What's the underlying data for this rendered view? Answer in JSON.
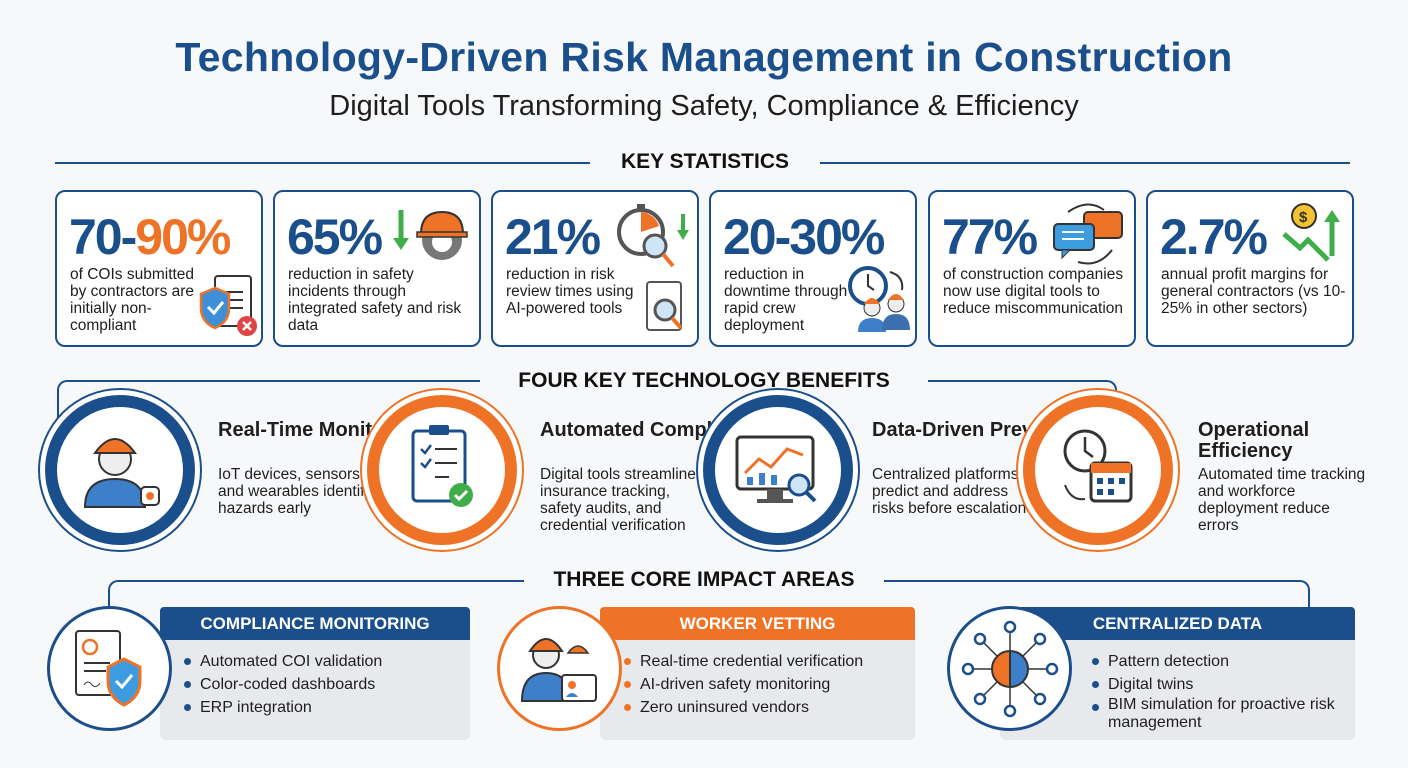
{
  "header": {
    "title": "Technology-Driven Risk Management in Construction",
    "subtitle": "Digital Tools Transforming Safety, Compliance & Efficiency"
  },
  "colors": {
    "blue": "#1b4f8c",
    "orange": "#ee7326",
    "green": "#3fae49"
  },
  "key_statistics": {
    "heading": "KEY STATISTICS",
    "cards": [
      {
        "value_a": "70-",
        "value_b": "90%",
        "text": "of COIs submitted by contractors are initially non-compliant",
        "icon": "document-shield-reject-icon"
      },
      {
        "value": "65%",
        "text": "reduction in safety incidents through integrated safety and risk data",
        "icon": "hardhat-gear-down-icon"
      },
      {
        "value": "21%",
        "text": "reduction in risk review times using AI-powered tools",
        "icon": "stopwatch-magnifier-icon"
      },
      {
        "value": "20-30%",
        "text": "reduction in downtime through rapid crew deployment",
        "icon": "clock-workers-icon"
      },
      {
        "value": "77%",
        "text": "of construction companies now use digital tools to reduce miscommunication",
        "icon": "chat-bubbles-icon"
      },
      {
        "value": "2.7%",
        "text": "annual profit margins for general contractors (vs 10-25% in other sectors)",
        "icon": "dollar-trend-icon"
      }
    ]
  },
  "benefits": {
    "heading": "FOUR KEY TECHNOLOGY BENEFITS",
    "items": [
      {
        "title": "Real-Time Monitoring",
        "text": "IoT devices, sensors, and wearables identify hazards early",
        "icon": "worker-wearable-icon"
      },
      {
        "title": "Automated Compliance",
        "text": "Digital tools streamline insurance tracking, safety audits, and credential verification",
        "icon": "checklist-icon"
      },
      {
        "title": "Data-Driven Prevention",
        "text": "Centralized platforms predict and address risks before escalation",
        "icon": "monitor-analytics-icon"
      },
      {
        "title": "Operational Efficiency",
        "text": "Automated time tracking and workforce deployment reduce errors",
        "icon": "clock-calendar-icon"
      }
    ]
  },
  "impact": {
    "heading": "THREE CORE IMPACT AREAS",
    "areas": [
      {
        "title": "COMPLIANCE MONITORING",
        "bullets": [
          "Automated COI validation",
          "Color-coded dashboards",
          "ERP integration"
        ],
        "icon": "document-shield-icon"
      },
      {
        "title": "WORKER VETTING",
        "bullets": [
          "Real-time credential verification",
          "AI-driven safety monitoring",
          "Zero uninsured vendors"
        ],
        "icon": "worker-id-badge-icon"
      },
      {
        "title": "CENTRALIZED DATA",
        "bullets": [
          "Pattern detection",
          "Digital twins",
          "BIM simulation for proactive risk management"
        ],
        "icon": "brain-network-icon"
      }
    ]
  }
}
